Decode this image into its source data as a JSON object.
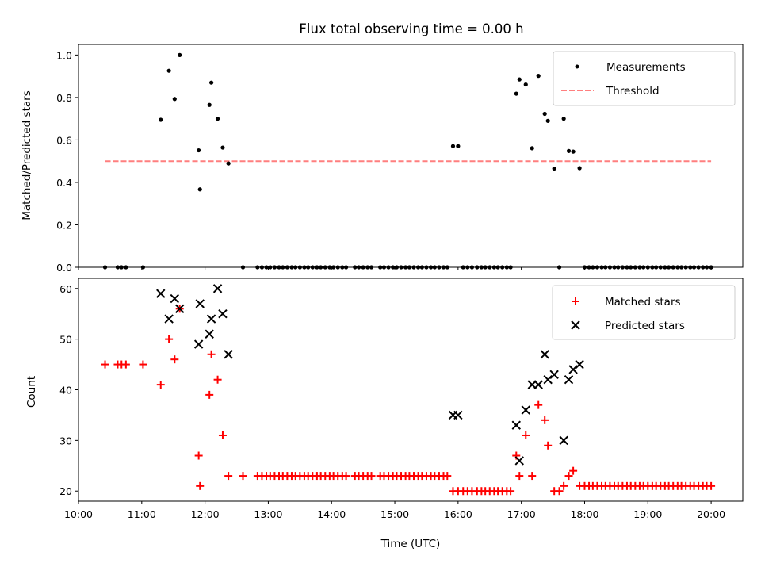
{
  "chart_data": [
    {
      "type": "scatter",
      "title": "Flux total observing time = 0.00 h",
      "xlabel": "",
      "ylabel": "Matched/Predicted stars",
      "xlim": [
        10.0,
        20.5
      ],
      "ylim": [
        0.0,
        1.05
      ],
      "yticks": [
        0.0,
        0.2,
        0.4,
        0.6,
        0.8,
        1.0
      ],
      "ytick_labels": [
        "0.0",
        "0.2",
        "0.4",
        "0.6",
        "0.8",
        "1.0"
      ],
      "legend": "top-right",
      "series": [
        {
          "name": "Measurements",
          "color": "#000000",
          "marker": "dot",
          "x": [
            10.42,
            10.62,
            10.68,
            10.75,
            11.02,
            11.3,
            11.43,
            11.52,
            11.6,
            11.9,
            11.92,
            12.07,
            12.1,
            12.2,
            12.28,
            12.37,
            12.6,
            12.83,
            12.9,
            12.97,
            13.03,
            13.1,
            13.17,
            13.23,
            13.3,
            13.37,
            13.43,
            13.5,
            13.57,
            13.63,
            13.7,
            13.77,
            13.83,
            13.9,
            13.97,
            14.03,
            14.1,
            14.17,
            14.23,
            14.37,
            14.43,
            14.5,
            14.57,
            14.63,
            14.77,
            14.83,
            14.9,
            14.97,
            15.03,
            15.1,
            15.17,
            15.23,
            15.3,
            15.37,
            15.43,
            15.5,
            15.57,
            15.63,
            15.7,
            15.77,
            15.83,
            15.92,
            16.0,
            16.08,
            16.15,
            16.22,
            16.3,
            16.37,
            16.43,
            16.5,
            16.57,
            16.63,
            16.7,
            16.77,
            16.83,
            16.92,
            16.97,
            17.07,
            17.17,
            17.27,
            17.37,
            17.42,
            17.52,
            17.6,
            17.67,
            17.75,
            17.82,
            17.92,
            18.0,
            18.07,
            18.13,
            18.2,
            18.27,
            18.33,
            18.4,
            18.47,
            18.53,
            18.6,
            18.67,
            18.73,
            18.8,
            18.87,
            18.93,
            19.0,
            19.07,
            19.13,
            19.2,
            19.27,
            19.33,
            19.4,
            19.47,
            19.53,
            19.6,
            19.67,
            19.73,
            19.8,
            19.87,
            19.93,
            20.0
          ],
          "y": [
            0.0,
            0.0,
            0.0,
            0.0,
            0.0,
            0.695,
            0.926,
            0.793,
            1.0,
            0.551,
            0.367,
            0.765,
            0.87,
            0.7,
            0.564,
            0.489,
            0.0,
            0.0,
            0.0,
            0.0,
            0.0,
            0.0,
            0.0,
            0.0,
            0.0,
            0.0,
            0.0,
            0.0,
            0.0,
            0.0,
            0.0,
            0.0,
            0.0,
            0.0,
            0.0,
            0.0,
            0.0,
            0.0,
            0.0,
            0.0,
            0.0,
            0.0,
            0.0,
            0.0,
            0.0,
            0.0,
            0.0,
            0.0,
            0.0,
            0.0,
            0.0,
            0.0,
            0.0,
            0.0,
            0.0,
            0.0,
            0.0,
            0.0,
            0.0,
            0.0,
            0.0,
            0.571,
            0.571,
            0.0,
            0.0,
            0.0,
            0.0,
            0.0,
            0.0,
            0.0,
            0.0,
            0.0,
            0.0,
            0.0,
            0.0,
            0.818,
            0.885,
            0.861,
            0.561,
            0.902,
            0.723,
            0.69,
            0.465,
            0.0,
            0.7,
            0.548,
            0.545,
            0.467,
            0.0,
            0.0,
            0.0,
            0.0,
            0.0,
            0.0,
            0.0,
            0.0,
            0.0,
            0.0,
            0.0,
            0.0,
            0.0,
            0.0,
            0.0,
            0.0,
            0.0,
            0.0,
            0.0,
            0.0,
            0.0,
            0.0,
            0.0,
            0.0,
            0.0,
            0.0,
            0.0,
            0.0,
            0.0,
            0.0,
            0.0
          ]
        },
        {
          "name": "Threshold",
          "color": "#ff7f7f",
          "style": "dashed",
          "x": [
            10.42,
            20.0
          ],
          "y": [
            0.5,
            0.5
          ]
        }
      ]
    },
    {
      "type": "scatter",
      "title": "",
      "xlabel": "Time (UTC)",
      "ylabel": "Count",
      "xlim": [
        10.0,
        20.5
      ],
      "ylim": [
        18,
        62
      ],
      "yticks": [
        20,
        30,
        40,
        50,
        60
      ],
      "ytick_labels": [
        "20",
        "30",
        "40",
        "50",
        "60"
      ],
      "xticks": [
        10,
        11,
        12,
        13,
        14,
        15,
        16,
        17,
        18,
        19,
        20
      ],
      "xtick_labels": [
        "10:00",
        "11:00",
        "12:00",
        "13:00",
        "14:00",
        "15:00",
        "16:00",
        "17:00",
        "18:00",
        "19:00",
        "20:00"
      ],
      "legend": "top-right",
      "series": [
        {
          "name": "Matched stars",
          "color": "#ff0000",
          "marker": "plus",
          "x": [
            10.42,
            10.62,
            10.68,
            10.75,
            11.02,
            11.3,
            11.43,
            11.52,
            11.6,
            11.9,
            11.92,
            12.07,
            12.1,
            12.2,
            12.28,
            12.37,
            12.6,
            12.83,
            12.9,
            12.97,
            13.03,
            13.1,
            13.17,
            13.23,
            13.3,
            13.37,
            13.43,
            13.5,
            13.57,
            13.63,
            13.7,
            13.77,
            13.83,
            13.9,
            13.97,
            14.03,
            14.1,
            14.17,
            14.23,
            14.37,
            14.43,
            14.5,
            14.57,
            14.63,
            14.77,
            14.83,
            14.9,
            14.97,
            15.03,
            15.1,
            15.17,
            15.23,
            15.3,
            15.37,
            15.43,
            15.5,
            15.57,
            15.63,
            15.7,
            15.77,
            15.83,
            15.92,
            16.0,
            16.08,
            16.15,
            16.22,
            16.3,
            16.37,
            16.43,
            16.5,
            16.57,
            16.63,
            16.7,
            16.77,
            16.83,
            16.92,
            16.97,
            17.07,
            17.17,
            17.27,
            17.37,
            17.42,
            17.52,
            17.6,
            17.67,
            17.75,
            17.82,
            17.92,
            18.0,
            18.07,
            18.13,
            18.2,
            18.27,
            18.33,
            18.4,
            18.47,
            18.53,
            18.6,
            18.67,
            18.73,
            18.8,
            18.87,
            18.93,
            19.0,
            19.07,
            19.13,
            19.2,
            19.27,
            19.33,
            19.4,
            19.47,
            19.53,
            19.6,
            19.67,
            19.73,
            19.8,
            19.87,
            19.93,
            20.0
          ],
          "y": [
            45,
            45,
            45,
            45,
            45,
            41,
            50,
            46,
            56,
            27,
            21,
            39,
            47,
            42,
            31,
            23,
            23,
            23,
            23,
            23,
            23,
            23,
            23,
            23,
            23,
            23,
            23,
            23,
            23,
            23,
            23,
            23,
            23,
            23,
            23,
            23,
            23,
            23,
            23,
            23,
            23,
            23,
            23,
            23,
            23,
            23,
            23,
            23,
            23,
            23,
            23,
            23,
            23,
            23,
            23,
            23,
            23,
            23,
            23,
            23,
            23,
            20,
            20,
            20,
            20,
            20,
            20,
            20,
            20,
            20,
            20,
            20,
            20,
            20,
            20,
            27,
            23,
            31,
            23,
            37,
            34,
            29,
            20,
            20,
            21,
            23,
            24,
            21,
            21,
            21,
            21,
            21,
            21,
            21,
            21,
            21,
            21,
            21,
            21,
            21,
            21,
            21,
            21,
            21,
            21,
            21,
            21,
            21,
            21,
            21,
            21,
            21,
            21,
            21,
            21,
            21,
            21,
            21,
            21
          ]
        },
        {
          "name": "Predicted stars",
          "color": "#000000",
          "marker": "x",
          "x": [
            11.3,
            11.43,
            11.52,
            11.6,
            11.9,
            11.92,
            12.07,
            12.1,
            12.2,
            12.28,
            12.37,
            15.92,
            16.0,
            16.92,
            16.97,
            17.07,
            17.17,
            17.27,
            17.37,
            17.42,
            17.52,
            17.67,
            17.75,
            17.82,
            17.92
          ],
          "y": [
            59,
            54,
            58,
            56,
            49,
            57,
            51,
            54,
            60,
            55,
            47,
            35,
            35,
            33,
            26,
            36,
            41,
            41,
            47,
            42,
            43,
            30,
            42,
            44,
            45
          ]
        }
      ]
    }
  ]
}
